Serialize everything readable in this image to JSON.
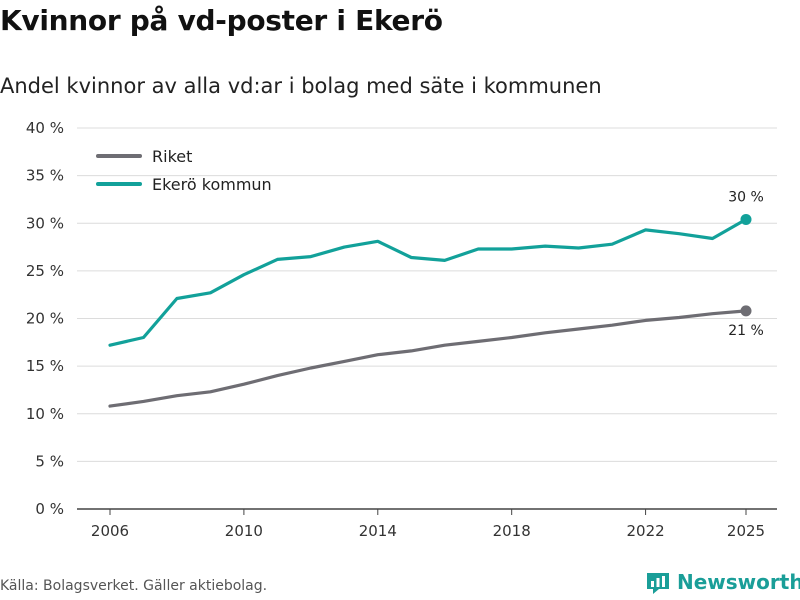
{
  "title": "Kvinnor på vd-poster i Ekerö",
  "subtitle": "Andel kvinnor av alla vd:ar i bolag med säte i kommunen",
  "source": "Källa: Bolagsverket. Gäller aktiebolag.",
  "brand": {
    "name": "Newsworthy",
    "icon": "newsworthy-logo-icon",
    "color": "#1a9e98"
  },
  "chart_data": {
    "type": "line",
    "title": "Kvinnor på vd-poster i Ekerö",
    "subtitle": "Andel kvinnor av alla vd:ar i bolag med säte i kommunen",
    "xlabel": "",
    "ylabel": "",
    "x_ticks": [
      "2006",
      "2010",
      "2014",
      "2018",
      "2022",
      "2025"
    ],
    "y_ticks": [
      "0 %",
      "5 %",
      "10 %",
      "15 %",
      "20 %",
      "25 %",
      "30 %",
      "35 %",
      "40 %"
    ],
    "xlim": [
      2006,
      2025
    ],
    "ylim": [
      0,
      40
    ],
    "grid": "horizontal",
    "legend_position": "top-left",
    "x": [
      2006,
      2007,
      2008,
      2009,
      2010,
      2011,
      2012,
      2013,
      2014,
      2015,
      2016,
      2017,
      2018,
      2019,
      2020,
      2021,
      2022,
      2023,
      2024,
      2025
    ],
    "series": [
      {
        "name": "Riket",
        "color": "#6e6d73",
        "end_label": "21 %",
        "values": [
          10.8,
          11.3,
          11.9,
          12.3,
          13.1,
          14.0,
          14.8,
          15.5,
          16.2,
          16.6,
          17.2,
          17.6,
          18.0,
          18.5,
          18.9,
          19.3,
          19.8,
          20.1,
          20.5,
          20.8
        ]
      },
      {
        "name": "Ekerö kommun",
        "color": "#12a19a",
        "end_label": "30 %",
        "values": [
          17.2,
          18.0,
          22.1,
          22.7,
          24.6,
          26.2,
          26.5,
          27.5,
          28.1,
          26.4,
          26.1,
          27.3,
          27.3,
          27.6,
          27.4,
          27.8,
          29.3,
          28.9,
          28.4,
          30.4
        ]
      }
    ]
  }
}
